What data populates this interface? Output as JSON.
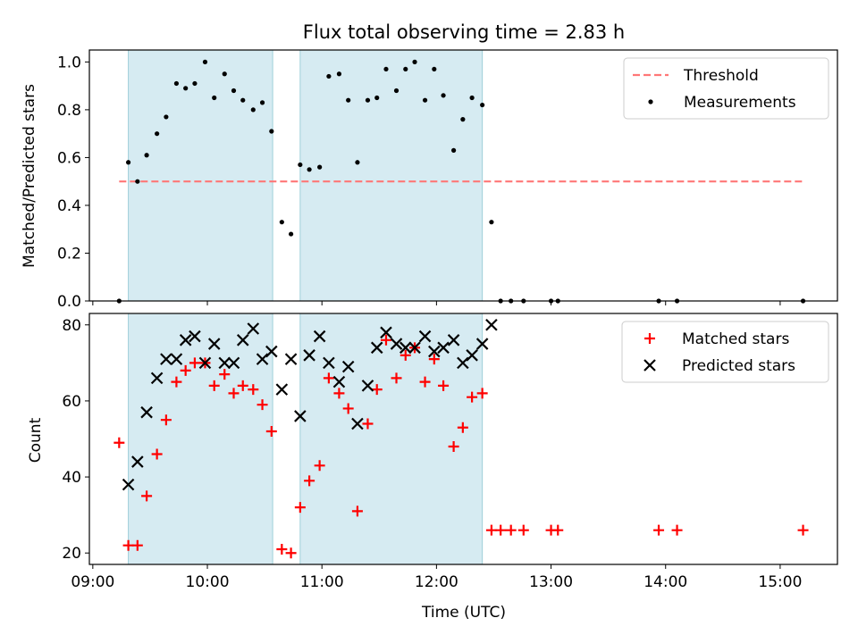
{
  "chart_data": [
    {
      "type": "scatter",
      "title": "Flux total observing time = 2.83 h",
      "ylabel": "Matched/Predicted stars",
      "xlabel": "",
      "x_unit": "hours UTC",
      "xlim": [
        8.97,
        15.5
      ],
      "ylim": [
        0,
        1.05
      ],
      "yticks": [
        "0.0",
        "0.2",
        "0.4",
        "0.6",
        "0.8",
        "1.0"
      ],
      "ytick_values": [
        0,
        0.2,
        0.4,
        0.6,
        0.8,
        1.0
      ],
      "xtick_values": [
        9,
        10,
        11,
        12,
        13,
        14,
        15
      ],
      "shaded_intervals": [
        [
          9.31,
          10.57
        ],
        [
          10.81,
          12.4
        ]
      ],
      "threshold": {
        "name": "Threshold",
        "y": 0.5,
        "x": [
          9.23,
          15.2
        ],
        "color": "#ff7777"
      },
      "series": [
        {
          "name": "Measurements",
          "color": "#000000",
          "x": [
            9.23,
            9.31,
            9.39,
            9.47,
            9.56,
            9.64,
            9.73,
            9.81,
            9.89,
            9.98,
            10.06,
            10.15,
            10.23,
            10.31,
            10.4,
            10.48,
            10.56,
            10.65,
            10.73,
            10.81,
            10.89,
            10.98,
            11.06,
            11.15,
            11.23,
            11.31,
            11.4,
            11.48,
            11.56,
            11.65,
            11.73,
            11.81,
            11.9,
            11.98,
            12.06,
            12.15,
            12.23,
            12.31,
            12.4,
            12.48,
            12.56,
            12.65,
            12.76,
            13.0,
            13.06,
            13.94,
            14.1,
            15.2
          ],
          "y": [
            0.0,
            0.58,
            0.5,
            0.61,
            0.7,
            0.77,
            0.91,
            0.89,
            0.91,
            1.0,
            0.85,
            0.95,
            0.88,
            0.84,
            0.8,
            0.83,
            0.71,
            0.33,
            0.28,
            0.57,
            0.55,
            0.56,
            0.94,
            0.95,
            0.84,
            0.58,
            0.84,
            0.85,
            0.97,
            0.88,
            0.97,
            1.0,
            0.84,
            0.97,
            0.86,
            0.63,
            0.76,
            0.85,
            0.82,
            0.33,
            0.0,
            0.0,
            0.0,
            0.0,
            0.0,
            0.0,
            0.0,
            0.0
          ]
        }
      ],
      "legend": {
        "placement": "top-right"
      }
    },
    {
      "type": "scatter",
      "title": "",
      "xlabel": "Time (UTC)",
      "ylabel": "Count",
      "xlim": [
        8.97,
        15.5
      ],
      "ylim": [
        17,
        83
      ],
      "yticks": [
        "20",
        "40",
        "60",
        "80"
      ],
      "ytick_values": [
        20,
        40,
        60,
        80
      ],
      "xticks": [
        "09:00",
        "10:00",
        "11:00",
        "12:00",
        "13:00",
        "14:00",
        "15:00"
      ],
      "xtick_values": [
        9,
        10,
        11,
        12,
        13,
        14,
        15
      ],
      "shaded_intervals": [
        [
          9.31,
          10.57
        ],
        [
          10.81,
          12.4
        ]
      ],
      "series": [
        {
          "name": "Matched stars",
          "marker": "plus",
          "color": "#ff0000",
          "x": [
            9.23,
            9.31,
            9.39,
            9.47,
            9.56,
            9.64,
            9.73,
            9.81,
            9.89,
            9.98,
            10.06,
            10.15,
            10.23,
            10.31,
            10.4,
            10.48,
            10.56,
            10.65,
            10.73,
            10.81,
            10.89,
            10.98,
            11.06,
            11.15,
            11.23,
            11.31,
            11.4,
            11.48,
            11.56,
            11.65,
            11.73,
            11.81,
            11.9,
            11.98,
            12.06,
            12.15,
            12.23,
            12.31,
            12.4,
            12.48,
            12.56,
            12.65,
            12.76,
            13.0,
            13.06,
            13.94,
            14.1,
            15.2
          ],
          "y": [
            49,
            22,
            22,
            35,
            46,
            55,
            65,
            68,
            70,
            70,
            64,
            67,
            62,
            64,
            63,
            59,
            52,
            21,
            20,
            32,
            39,
            43,
            66,
            62,
            58,
            31,
            54,
            63,
            76,
            66,
            72,
            74,
            65,
            71,
            64,
            48,
            53,
            61,
            62,
            26,
            26,
            26,
            26,
            26,
            26,
            26,
            26,
            26
          ]
        },
        {
          "name": "Predicted stars",
          "marker": "x",
          "color": "#000000",
          "x": [
            9.31,
            9.39,
            9.47,
            9.56,
            9.64,
            9.73,
            9.81,
            9.89,
            9.98,
            10.06,
            10.15,
            10.23,
            10.31,
            10.4,
            10.48,
            10.56,
            10.65,
            10.73,
            10.81,
            10.89,
            10.98,
            11.06,
            11.15,
            11.23,
            11.31,
            11.4,
            11.48,
            11.56,
            11.65,
            11.73,
            11.81,
            11.9,
            11.98,
            12.06,
            12.15,
            12.23,
            12.31,
            12.4,
            12.48
          ],
          "y": [
            38,
            44,
            57,
            66,
            71,
            71,
            76,
            77,
            70,
            75,
            70,
            70,
            76,
            79,
            71,
            73,
            63,
            71,
            56,
            72,
            77,
            70,
            65,
            69,
            54,
            64,
            74,
            78,
            75,
            74,
            74,
            77,
            73,
            74,
            76,
            70,
            72,
            75,
            80
          ]
        }
      ],
      "legend": {
        "placement": "top-right"
      }
    }
  ]
}
